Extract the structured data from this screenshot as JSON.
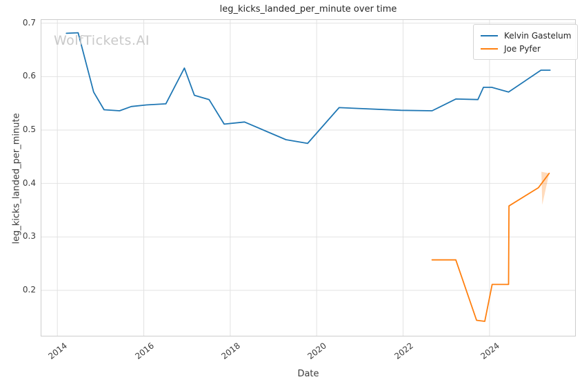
{
  "chart": {
    "title": "leg_kicks_landed_per_minute over time",
    "watermark": "WolfTickets.AI",
    "xlabel": "Date",
    "ylabel": "leg_kicks_landed_per_minute"
  },
  "chart_data": {
    "type": "line",
    "title": "leg_kicks_landed_per_minute over time",
    "xlabel": "Date",
    "ylabel": "leg_kicks_landed_per_minute",
    "xlim": [
      2013.63,
      2025.98
    ],
    "ylim": [
      0.115,
      0.706
    ],
    "x_ticks": [
      2014,
      2016,
      2018,
      2020,
      2022,
      2024
    ],
    "y_ticks": [
      0.2,
      0.3,
      0.4,
      0.5,
      0.6,
      0.7
    ],
    "grid": true,
    "grid_color": "#e2e2e2",
    "legend_position": "upper right",
    "background": "#ffffff",
    "series": [
      {
        "name": "Kelvin Gastelum",
        "color": "#1f77b4",
        "x": [
          2014.21,
          2014.48,
          2014.84,
          2015.08,
          2015.44,
          2015.71,
          2016.06,
          2016.51,
          2016.94,
          2017.17,
          2017.51,
          2017.86,
          2018.33,
          2019.29,
          2019.79,
          2020.52,
          2021.95,
          2022.67,
          2023.22,
          2023.73,
          2023.86,
          2024.05,
          2024.44,
          2025.19,
          2025.4
        ],
        "y": [
          0.681,
          0.682,
          0.571,
          0.538,
          0.536,
          0.544,
          0.547,
          0.549,
          0.616,
          0.565,
          0.557,
          0.511,
          0.515,
          0.482,
          0.475,
          0.542,
          0.537,
          0.536,
          0.558,
          0.557,
          0.58,
          0.58,
          0.571,
          0.612,
          0.612
        ]
      },
      {
        "name": "Joe Pyfer",
        "color": "#ff7f0e",
        "x": [
          2022.67,
          2023.22,
          2023.7,
          2023.89,
          2024.06,
          2024.44,
          2024.45,
          2025.13,
          2025.38
        ],
        "y": [
          0.257,
          0.257,
          0.144,
          0.142,
          0.211,
          0.211,
          0.358,
          0.392,
          0.419
        ],
        "band": {
          "color": "rgba(255,127,14,0.28)",
          "points": [
            [
              2025.2,
              0.422
            ],
            [
              2025.38,
              0.419
            ],
            [
              2025.22,
              0.36
            ]
          ]
        }
      }
    ]
  }
}
